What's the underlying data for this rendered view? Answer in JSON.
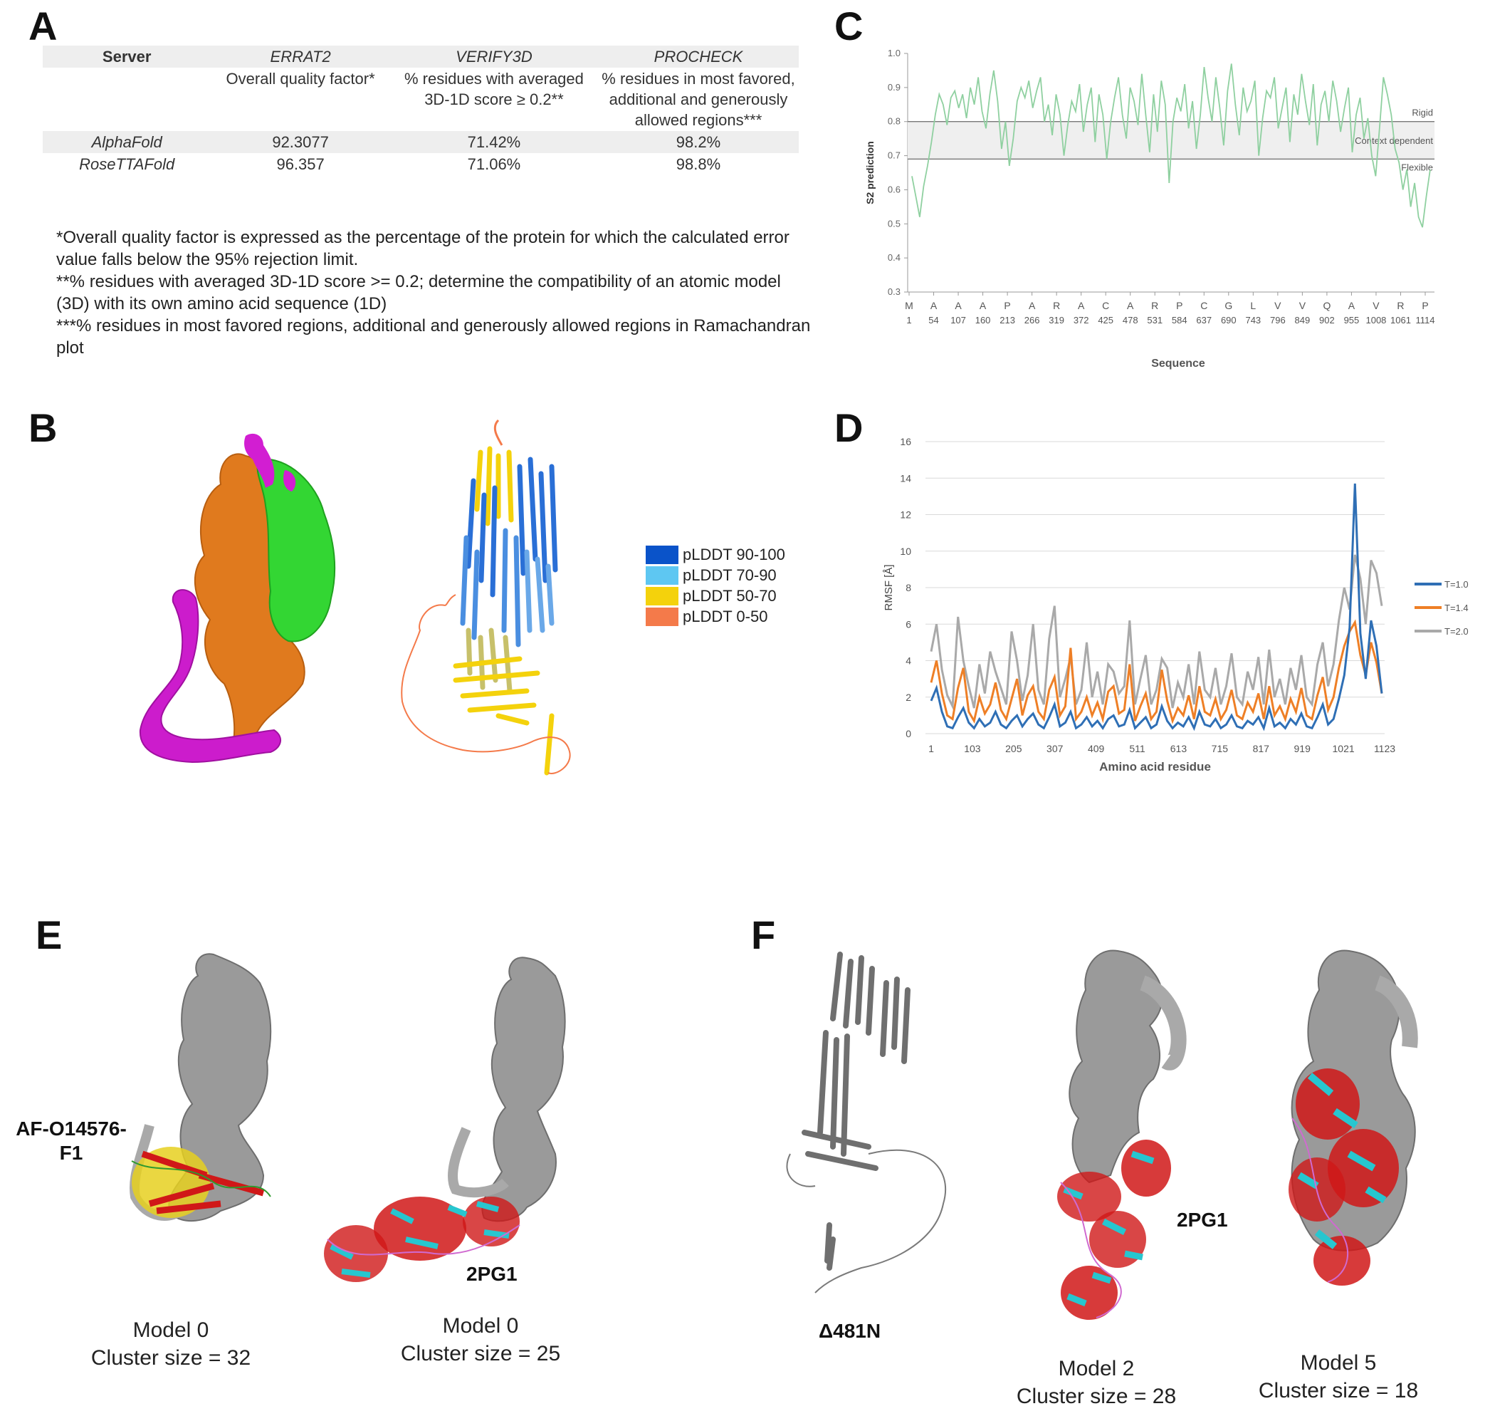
{
  "panels": {
    "A": {
      "letter": "A",
      "headers": [
        {
          "top": "Server",
          "sub": ""
        },
        {
          "top": "ERRAT2",
          "sub": "Overall quality factor*"
        },
        {
          "top": "VERIFY3D",
          "sub": "% residues with averaged 3D-1D score ≥ 0.2**"
        },
        {
          "top": "PROCHECK",
          "sub": "% residues in most favored, additional and generously allowed regions***"
        }
      ],
      "rows": [
        {
          "server": "AlphaFold",
          "errat": "92.3077",
          "verify": "71.42%",
          "procheck": "98.2%"
        },
        {
          "server": "RoseTTAFold",
          "errat": "96.357",
          "verify": "71.06%",
          "procheck": "98.8%"
        }
      ],
      "notes": [
        "*Overall quality factor is expressed as the percentage of the protein for which the calculated error value falls below the 95% rejection limit.",
        "**% residues with averaged 3D-1D score >= 0.2; determine the compatibility of an atomic model (3D) with its own amino acid sequence (1D)",
        "***% residues in most favored regions, additional and generously allowed regions in Ramachandran plot"
      ]
    },
    "B": {
      "letter": "B",
      "legend": [
        {
          "label": "pLDDT 90-100",
          "color": "#0a53c9"
        },
        {
          "label": "pLDDT 70-90",
          "color": "#5ec7f2"
        },
        {
          "label": "pLDDT 50-70",
          "color": "#f4d20c"
        },
        {
          "label": "pLDDT 0-50",
          "color": "#f47a4a"
        }
      ]
    },
    "C": {
      "letter": "C"
    },
    "D": {
      "letter": "D"
    },
    "E": {
      "letter": "E",
      "label_af": "AF-O14576-F1",
      "label_2pg1": "2PG1",
      "caption1": "Model 0",
      "caption1b": "Cluster size = 32",
      "caption2": "Model 0",
      "caption2b": "Cluster size = 25"
    },
    "F": {
      "letter": "F",
      "label_delta": "Δ481N",
      "label_2pg1": "2PG1",
      "caption1": "Model 2",
      "caption1b": "Cluster size = 28",
      "caption2": "Model 5",
      "caption2b": "Cluster size = 18"
    }
  },
  "chart_data": [
    {
      "id": "C",
      "type": "line",
      "title": "",
      "xlabel": "Sequence",
      "ylabel": "S2 prediction",
      "ylim": [
        0.3,
        1.0
      ],
      "yticks": [
        "0.3",
        "0.4",
        "0.5",
        "0.6",
        "0.7",
        "0.8",
        "0.9",
        "1.0"
      ],
      "x_residue_letters": [
        "M",
        "A",
        "A",
        "A",
        "P",
        "A",
        "R",
        "A",
        "C",
        "A",
        "R",
        "P",
        "C",
        "G",
        "L",
        "V",
        "V",
        "Q",
        "A",
        "V",
        "R",
        "P"
      ],
      "x_residue_numbers": [
        "1",
        "54",
        "107",
        "160",
        "213",
        "266",
        "319",
        "372",
        "425",
        "478",
        "531",
        "584",
        "637",
        "690",
        "743",
        "796",
        "849",
        "902",
        "955",
        "1008",
        "1061",
        "1114"
      ],
      "thresholds": [
        {
          "value": 0.8,
          "label": "Rigid"
        },
        {
          "value": 0.69,
          "label": "Flexible"
        }
      ],
      "band_label": "Context dependent",
      "series": [
        {
          "name": "S2",
          "color": "#8fd0a0",
          "values": [
            0.64,
            0.58,
            0.52,
            0.61,
            0.67,
            0.74,
            0.82,
            0.88,
            0.85,
            0.79,
            0.87,
            0.89,
            0.84,
            0.88,
            0.81,
            0.9,
            0.85,
            0.93,
            0.83,
            0.78,
            0.88,
            0.95,
            0.86,
            0.72,
            0.8,
            0.67,
            0.75,
            0.86,
            0.9,
            0.87,
            0.92,
            0.84,
            0.89,
            0.93,
            0.8,
            0.85,
            0.76,
            0.88,
            0.82,
            0.7,
            0.79,
            0.86,
            0.83,
            0.91,
            0.77,
            0.85,
            0.9,
            0.74,
            0.88,
            0.82,
            0.69,
            0.8,
            0.87,
            0.93,
            0.82,
            0.75,
            0.9,
            0.86,
            0.79,
            0.94,
            0.82,
            0.71,
            0.88,
            0.77,
            0.92,
            0.85,
            0.62,
            0.8,
            0.87,
            0.83,
            0.91,
            0.78,
            0.86,
            0.72,
            0.82,
            0.96,
            0.87,
            0.8,
            0.93,
            0.84,
            0.73,
            0.89,
            0.97,
            0.85,
            0.76,
            0.9,
            0.83,
            0.86,
            0.92,
            0.7,
            0.81,
            0.89,
            0.87,
            0.93,
            0.78,
            0.84,
            0.9,
            0.74,
            0.88,
            0.82,
            0.94,
            0.86,
            0.79,
            0.91,
            0.73,
            0.85,
            0.89,
            0.8,
            0.92,
            0.86,
            0.77,
            0.84,
            0.9,
            0.71,
            0.82,
            0.87,
            0.75,
            0.81,
            0.7,
            0.64,
            0.78,
            0.93,
            0.88,
            0.82,
            0.72,
            0.68,
            0.6,
            0.66,
            0.55,
            0.62,
            0.52,
            0.49,
            0.58,
            0.66
          ]
        }
      ]
    },
    {
      "id": "D",
      "type": "line",
      "title": "",
      "xlabel": "Amino acid residue",
      "ylabel": "RMSF [Å]",
      "ylim": [
        0,
        16
      ],
      "yticks": [
        "0",
        "2",
        "4",
        "6",
        "8",
        "10",
        "12",
        "14",
        "16"
      ],
      "xticks": [
        "1",
        "103",
        "205",
        "307",
        "409",
        "511",
        "613",
        "715",
        "817",
        "919",
        "1021",
        "1123"
      ],
      "series": [
        {
          "name": "T=1.0",
          "color": "#2f6fb5",
          "values": [
            1.8,
            2.5,
            1.2,
            0.4,
            0.3,
            0.9,
            1.4,
            0.6,
            0.3,
            0.8,
            0.4,
            0.6,
            1.2,
            0.5,
            0.3,
            0.7,
            1.0,
            0.4,
            0.8,
            1.1,
            0.5,
            0.3,
            0.9,
            1.6,
            0.4,
            0.6,
            1.2,
            0.3,
            0.5,
            0.9,
            0.4,
            0.7,
            0.3,
            0.8,
            1.0,
            0.4,
            0.5,
            1.3,
            0.3,
            0.6,
            0.9,
            0.3,
            0.5,
            1.5,
            0.7,
            0.3,
            0.6,
            0.4,
            0.9,
            0.3,
            1.2,
            0.5,
            0.4,
            0.8,
            0.3,
            0.5,
            1.0,
            0.4,
            0.3,
            0.7,
            0.5,
            0.9,
            0.3,
            1.4,
            0.4,
            0.6,
            0.3,
            0.8,
            0.5,
            1.1,
            0.4,
            0.3,
            0.9,
            1.6,
            0.5,
            0.8,
            1.9,
            3.2,
            5.8,
            13.7,
            5.5,
            3.0,
            6.2,
            4.8,
            2.2
          ]
        },
        {
          "name": "T=1.4",
          "color": "#ee7f26",
          "values": [
            2.8,
            4.0,
            2.2,
            1.0,
            0.8,
            2.5,
            3.6,
            1.2,
            0.7,
            2.0,
            1.1,
            1.6,
            2.8,
            1.3,
            0.8,
            1.9,
            3.0,
            1.0,
            2.1,
            2.6,
            1.2,
            0.8,
            2.4,
            3.1,
            1.0,
            1.5,
            4.7,
            0.8,
            1.2,
            2.0,
            1.0,
            1.7,
            0.8,
            2.3,
            2.6,
            1.1,
            1.3,
            3.8,
            0.7,
            1.5,
            2.2,
            0.8,
            1.2,
            3.5,
            1.8,
            0.7,
            1.4,
            1.0,
            2.1,
            0.8,
            2.6,
            1.2,
            1.0,
            1.9,
            0.8,
            1.3,
            2.4,
            1.0,
            0.8,
            1.7,
            1.2,
            2.2,
            0.8,
            2.6,
            1.0,
            1.5,
            0.8,
            1.9,
            1.2,
            2.5,
            1.0,
            0.8,
            2.1,
            3.1,
            1.3,
            2.0,
            3.6,
            4.8,
            5.6,
            6.1,
            4.3,
            3.2,
            5.0,
            3.9,
            2.2
          ]
        },
        {
          "name": "T=2.0",
          "color": "#a9a9a9",
          "values": [
            4.5,
            6.0,
            3.5,
            2.1,
            1.5,
            6.4,
            4.0,
            2.6,
            1.4,
            3.8,
            2.2,
            4.5,
            3.4,
            2.5,
            1.6,
            5.6,
            4.0,
            1.8,
            3.2,
            6.0,
            2.4,
            1.6,
            5.2,
            7.0,
            2.0,
            3.0,
            4.2,
            1.6,
            2.4,
            5.0,
            2.0,
            3.4,
            1.6,
            3.8,
            3.4,
            2.2,
            2.6,
            6.2,
            1.6,
            3.0,
            4.3,
            1.6,
            2.4,
            4.1,
            3.6,
            1.4,
            2.8,
            2.0,
            3.8,
            1.6,
            4.5,
            2.4,
            2.0,
            3.6,
            1.6,
            2.6,
            4.4,
            2.0,
            1.6,
            3.4,
            2.4,
            4.2,
            1.6,
            4.6,
            2.0,
            3.0,
            1.6,
            3.6,
            2.4,
            4.3,
            2.0,
            1.6,
            3.8,
            5.0,
            2.6,
            3.8,
            6.2,
            8.0,
            6.8,
            9.8,
            8.5,
            6.0,
            9.5,
            8.8,
            7.0
          ]
        }
      ]
    }
  ]
}
